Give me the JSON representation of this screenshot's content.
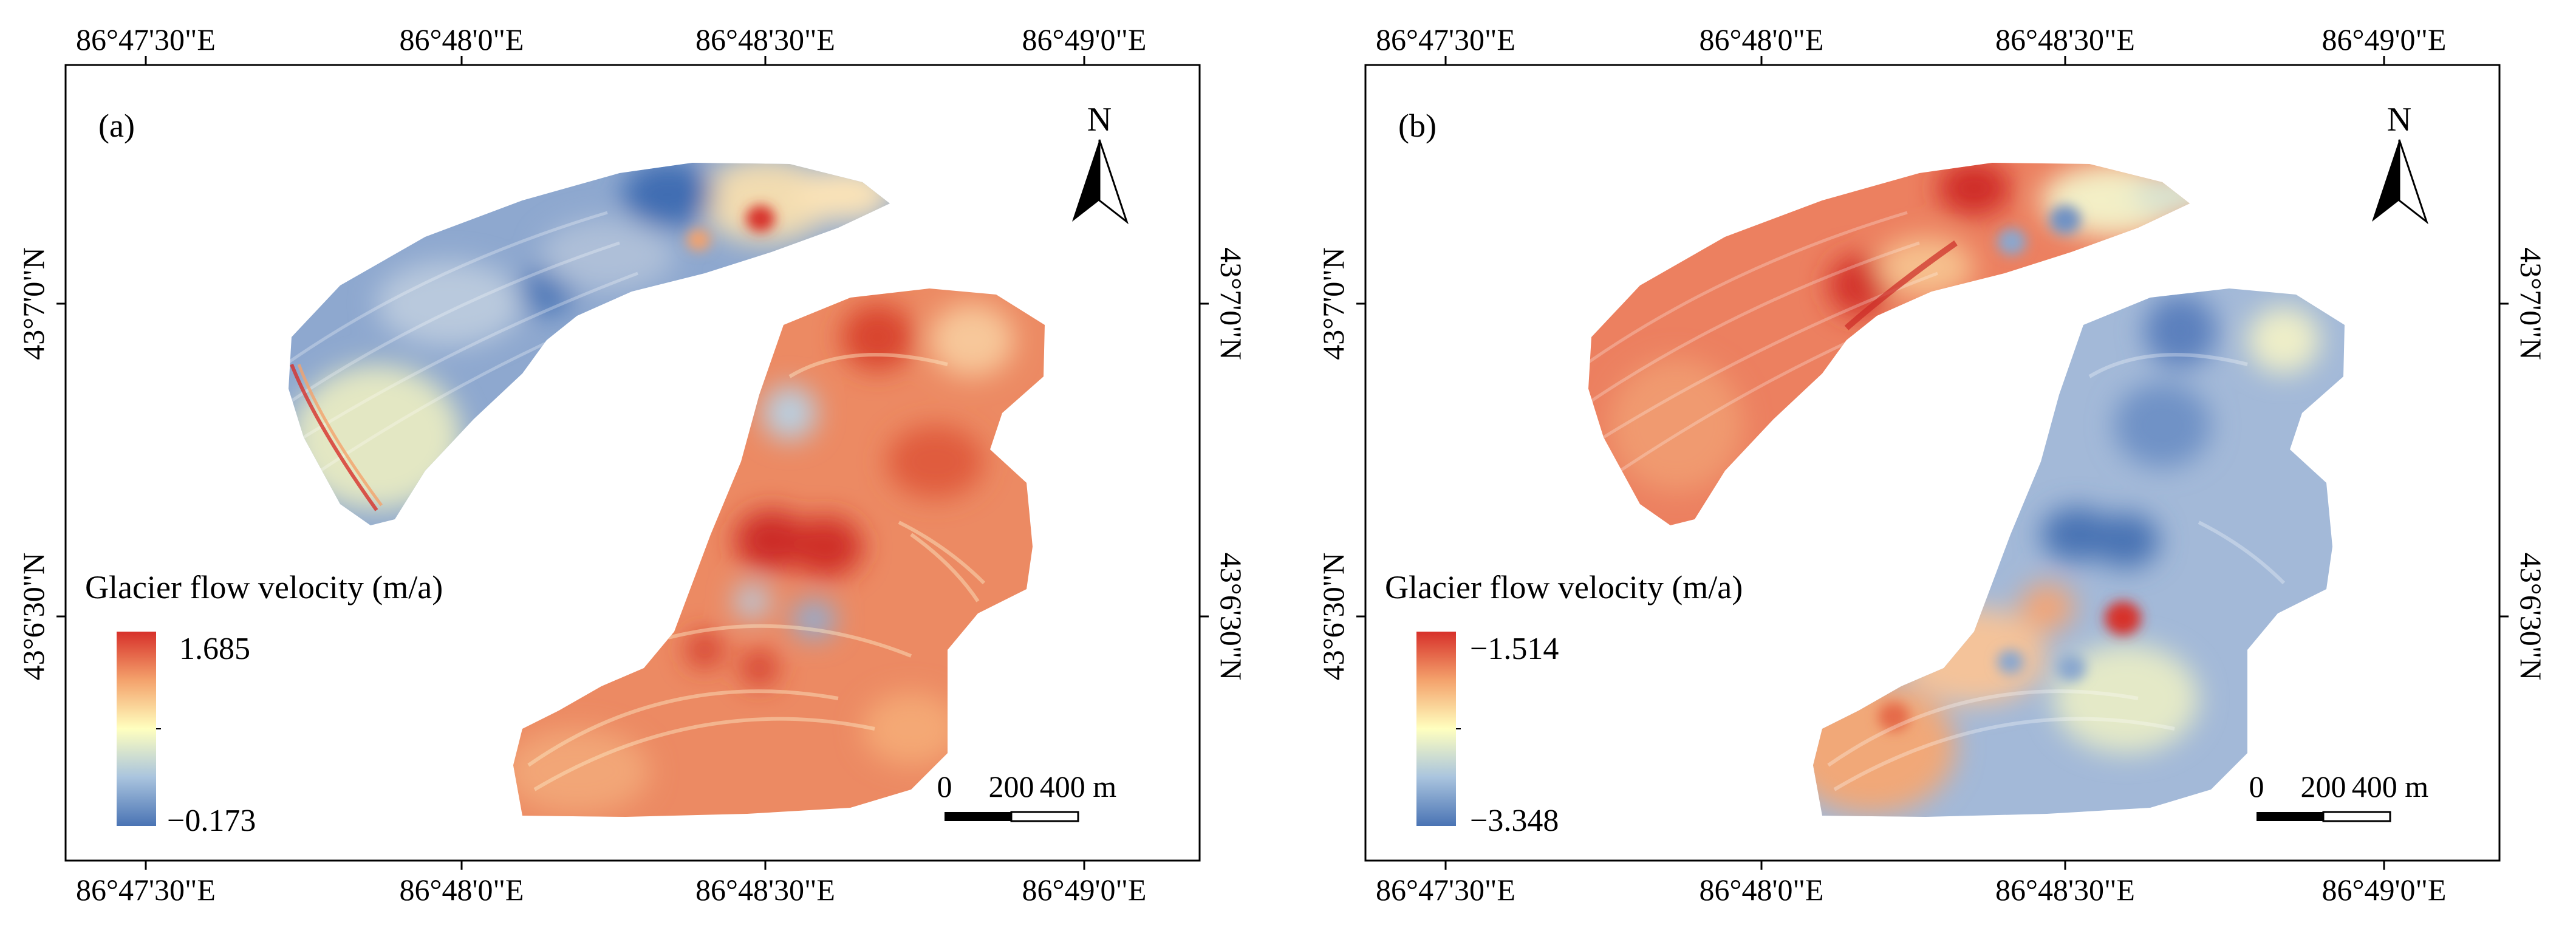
{
  "panels": [
    {
      "label": "(a)",
      "top_labels": [
        "86°47'30\"E",
        "86°48'0\"E",
        "86°48'30\"E",
        "86°49'0\"E"
      ],
      "bottom_labels": [
        "86°47'30\"E",
        "86°48'0\"E",
        "86°48'30\"E",
        "86°49'0\"E"
      ],
      "left_labels": [
        "43°7'0\"N",
        "43°6'30\"N"
      ],
      "right_labels": [
        "43°7'0\"N",
        "43°6'30\"N"
      ],
      "north": "N",
      "legend": {
        "title": "Glacier flow velocity (m/a)",
        "max": "1.685",
        "min": "−0.173"
      },
      "scale": {
        "zero": "0",
        "mid": "200",
        "end": "400 m"
      },
      "colors": {
        "upper": "#6f95c6",
        "lower": "#ec7a58"
      }
    },
    {
      "label": "(b)",
      "top_labels": [
        "86°47'30\"E",
        "86°48'0\"E",
        "86°48'30\"E",
        "86°49'0\"E"
      ],
      "bottom_labels": [
        "86°47'30\"E",
        "86°48'0\"E",
        "86°48'30\"E",
        "86°49'0\"E"
      ],
      "left_labels": [
        "43°7'0\"N",
        "43°6'30\"N"
      ],
      "right_labels": [
        "43°7'0\"N",
        "43°6'30\"N"
      ],
      "north": "N",
      "legend": {
        "title": "Glacier flow velocity (m/a)",
        "max": "−1.514",
        "min": "−3.348"
      },
      "scale": {
        "zero": "0",
        "mid": "200",
        "end": "400 m"
      },
      "colors": {
        "upper": "#ec7a58",
        "lower": "#8ea8d1"
      }
    }
  ],
  "colormap": [
    "#d7302a",
    "#f4a26c",
    "#ffffbf",
    "#a9c4de",
    "#4a74b4"
  ]
}
